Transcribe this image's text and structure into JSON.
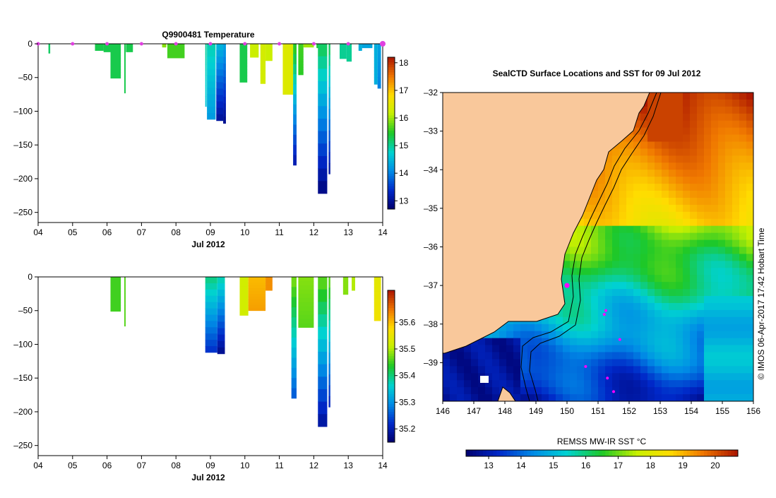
{
  "chart_data": [
    {
      "type": "heatmap",
      "title": "Q9900481  Temperature",
      "xlabel": "Jul 2012",
      "ylabel": "",
      "x_ticks": [
        "04",
        "05",
        "06",
        "07",
        "08",
        "09",
        "10",
        "11",
        "12",
        "13",
        "14"
      ],
      "x_range": [
        4,
        14
      ],
      "ylim": [
        -265,
        0
      ],
      "y_ticks": [
        0,
        -50,
        -100,
        -150,
        -200,
        -250
      ],
      "colorbar": {
        "min": 12.7,
        "max": 18.2,
        "ticks": [
          13,
          14,
          15,
          16,
          17,
          18
        ]
      },
      "profiles": [
        {
          "x": 4.3,
          "w": 0.05,
          "depth": 14,
          "top": 15.2,
          "bottom": 15.2
        },
        {
          "x": 5.65,
          "w": 0.25,
          "depth": 10,
          "top": 15.3,
          "bottom": 15.3
        },
        {
          "x": 5.9,
          "w": 0.2,
          "depth": 12,
          "top": 15.3,
          "bottom": 15.3
        },
        {
          "x": 6.1,
          "w": 0.3,
          "depth": 51,
          "top": 15.3,
          "bottom": 15.3
        },
        {
          "x": 6.5,
          "w": 0.04,
          "depth": 73,
          "top": 15.3,
          "bottom": 15.3
        },
        {
          "x": 6.55,
          "w": 0.2,
          "depth": 12,
          "top": 15.3,
          "bottom": 15.3
        },
        {
          "x": 7.6,
          "w": 0.12,
          "depth": 5,
          "top": 15.9,
          "bottom": 15.9
        },
        {
          "x": 7.75,
          "w": 0.5,
          "depth": 21,
          "top": 15.6,
          "bottom": 15.6
        },
        {
          "x": 8.85,
          "w": 0.04,
          "depth": 93,
          "top": 15.0,
          "bottom": 14.6
        },
        {
          "x": 8.9,
          "w": 0.25,
          "depth": 112,
          "top": 14.9,
          "bottom": 14.2
        },
        {
          "x": 9.17,
          "w": 0.2,
          "depth": 114,
          "top": 14.5,
          "bottom": 13.0
        },
        {
          "x": 9.37,
          "w": 0.08,
          "depth": 118,
          "top": 14.3,
          "bottom": 12.9
        },
        {
          "x": 9.85,
          "w": 0.22,
          "depth": 57,
          "top": 15.3,
          "bottom": 15.3
        },
        {
          "x": 10.15,
          "w": 0.25,
          "depth": 20,
          "top": 16.2,
          "bottom": 16.2
        },
        {
          "x": 10.45,
          "w": 0.15,
          "depth": 59,
          "top": 16.3,
          "bottom": 16.3
        },
        {
          "x": 10.6,
          "w": 0.2,
          "depth": 25,
          "top": 16.2,
          "bottom": 16.2
        },
        {
          "x": 11.1,
          "w": 0.3,
          "depth": 75,
          "top": 16.4,
          "bottom": 16.4
        },
        {
          "x": 11.4,
          "w": 0.1,
          "depth": 180,
          "top": 15.6,
          "bottom": 13.1
        },
        {
          "x": 11.55,
          "w": 0.15,
          "depth": 46,
          "top": 15.6,
          "bottom": 15.5
        },
        {
          "x": 11.7,
          "w": 0.3,
          "depth": 5,
          "top": 16.0,
          "bottom": 16.0
        },
        {
          "x": 12.08,
          "w": 0.2,
          "depth": 6,
          "top": 15.4,
          "bottom": 15.4
        },
        {
          "x": 12.12,
          "w": 0.27,
          "depth": 222,
          "top": 15.3,
          "bottom": 12.8
        },
        {
          "x": 12.43,
          "w": 0.05,
          "depth": 193,
          "top": 15.3,
          "bottom": 13.0
        },
        {
          "x": 12.75,
          "w": 0.2,
          "depth": 22,
          "top": 15.0,
          "bottom": 15.0
        },
        {
          "x": 12.95,
          "w": 0.15,
          "depth": 26,
          "top": 15.0,
          "bottom": 15.0
        },
        {
          "x": 13.3,
          "w": 0.1,
          "depth": 10,
          "top": 14.4,
          "bottom": 14.4
        },
        {
          "x": 13.4,
          "w": 0.3,
          "depth": 6,
          "top": 14.3,
          "bottom": 14.3
        },
        {
          "x": 13.75,
          "w": 0.1,
          "depth": 60,
          "top": 14.4,
          "bottom": 14.4
        },
        {
          "x": 13.85,
          "w": 0.1,
          "depth": 66,
          "top": 14.3,
          "bottom": 14.0
        }
      ]
    },
    {
      "type": "heatmap",
      "title": "",
      "xlabel": "Jul 2012",
      "ylabel": "",
      "x_ticks": [
        "04",
        "05",
        "06",
        "07",
        "08",
        "09",
        "10",
        "11",
        "12",
        "13",
        "14"
      ],
      "x_range": [
        4,
        14
      ],
      "ylim": [
        -265,
        0
      ],
      "y_ticks": [
        0,
        -50,
        -100,
        -150,
        -200,
        -250
      ],
      "colorbar": {
        "min": 35.15,
        "max": 35.72,
        "ticks": [
          35.2,
          35.3,
          35.4,
          35.5,
          35.6
        ]
      },
      "profiles": [
        {
          "x": 6.1,
          "w": 0.3,
          "depth": 51,
          "top": 35.45,
          "bottom": 35.45
        },
        {
          "x": 6.5,
          "w": 0.04,
          "depth": 73,
          "top": 35.46,
          "bottom": 35.46
        },
        {
          "x": 8.85,
          "w": 0.35,
          "depth": 112,
          "top": 35.4,
          "bottom": 35.22
        },
        {
          "x": 9.2,
          "w": 0.22,
          "depth": 114,
          "top": 35.38,
          "bottom": 35.17
        },
        {
          "x": 9.85,
          "w": 0.25,
          "depth": 57,
          "top": 35.52,
          "bottom": 35.52
        },
        {
          "x": 10.1,
          "w": 0.5,
          "depth": 50,
          "top": 35.6,
          "bottom": 35.62
        },
        {
          "x": 10.6,
          "w": 0.2,
          "depth": 20,
          "top": 35.63,
          "bottom": 35.63
        },
        {
          "x": 11.35,
          "w": 0.15,
          "depth": 180,
          "top": 35.48,
          "bottom": 35.25
        },
        {
          "x": 11.55,
          "w": 0.45,
          "depth": 75,
          "top": 35.48,
          "bottom": 35.46
        },
        {
          "x": 12.12,
          "w": 0.27,
          "depth": 222,
          "top": 35.47,
          "bottom": 35.18
        },
        {
          "x": 12.43,
          "w": 0.05,
          "depth": 193,
          "top": 35.47,
          "bottom": 35.2
        },
        {
          "x": 12.85,
          "w": 0.15,
          "depth": 26,
          "top": 35.48,
          "bottom": 35.48
        },
        {
          "x": 13.1,
          "w": 0.1,
          "depth": 20,
          "top": 35.5,
          "bottom": 35.5
        },
        {
          "x": 13.75,
          "w": 0.2,
          "depth": 65,
          "top": 35.54,
          "bottom": 35.56
        }
      ]
    },
    {
      "type": "heatmap",
      "title": "SealCTD Surface Locations and SST for 09 Jul 2012",
      "xlabel": "",
      "ylabel": "",
      "x_ticks": [
        "146",
        "147",
        "148",
        "149",
        "150",
        "151",
        "152",
        "153",
        "154",
        "155",
        "156"
      ],
      "x_range": [
        146,
        156
      ],
      "y_ticks": [
        "-32",
        "-33",
        "-34",
        "-35",
        "-36",
        "-37",
        "-38",
        "-39"
      ],
      "y_range": [
        -32,
        -40
      ],
      "colorbar": {
        "label": "REMSS MW-IR SST °C",
        "min": 12.3,
        "max": 20.7,
        "ticks": [
          13,
          14,
          15,
          16,
          17,
          18,
          19,
          20
        ]
      },
      "side_text": "© IMOS 06-Apr-2017 17:42 Hobart Time",
      "seal_locations": [
        {
          "lon": 150.0,
          "lat": -37.0
        },
        {
          "lon": 151.25,
          "lat": -37.65
        },
        {
          "lon": 151.2,
          "lat": -37.75
        },
        {
          "lon": 151.7,
          "lat": -38.4
        },
        {
          "lon": 150.6,
          "lat": -39.1
        },
        {
          "lon": 151.3,
          "lat": -39.4
        },
        {
          "lon": 151.5,
          "lat": -39.75
        }
      ]
    }
  ]
}
